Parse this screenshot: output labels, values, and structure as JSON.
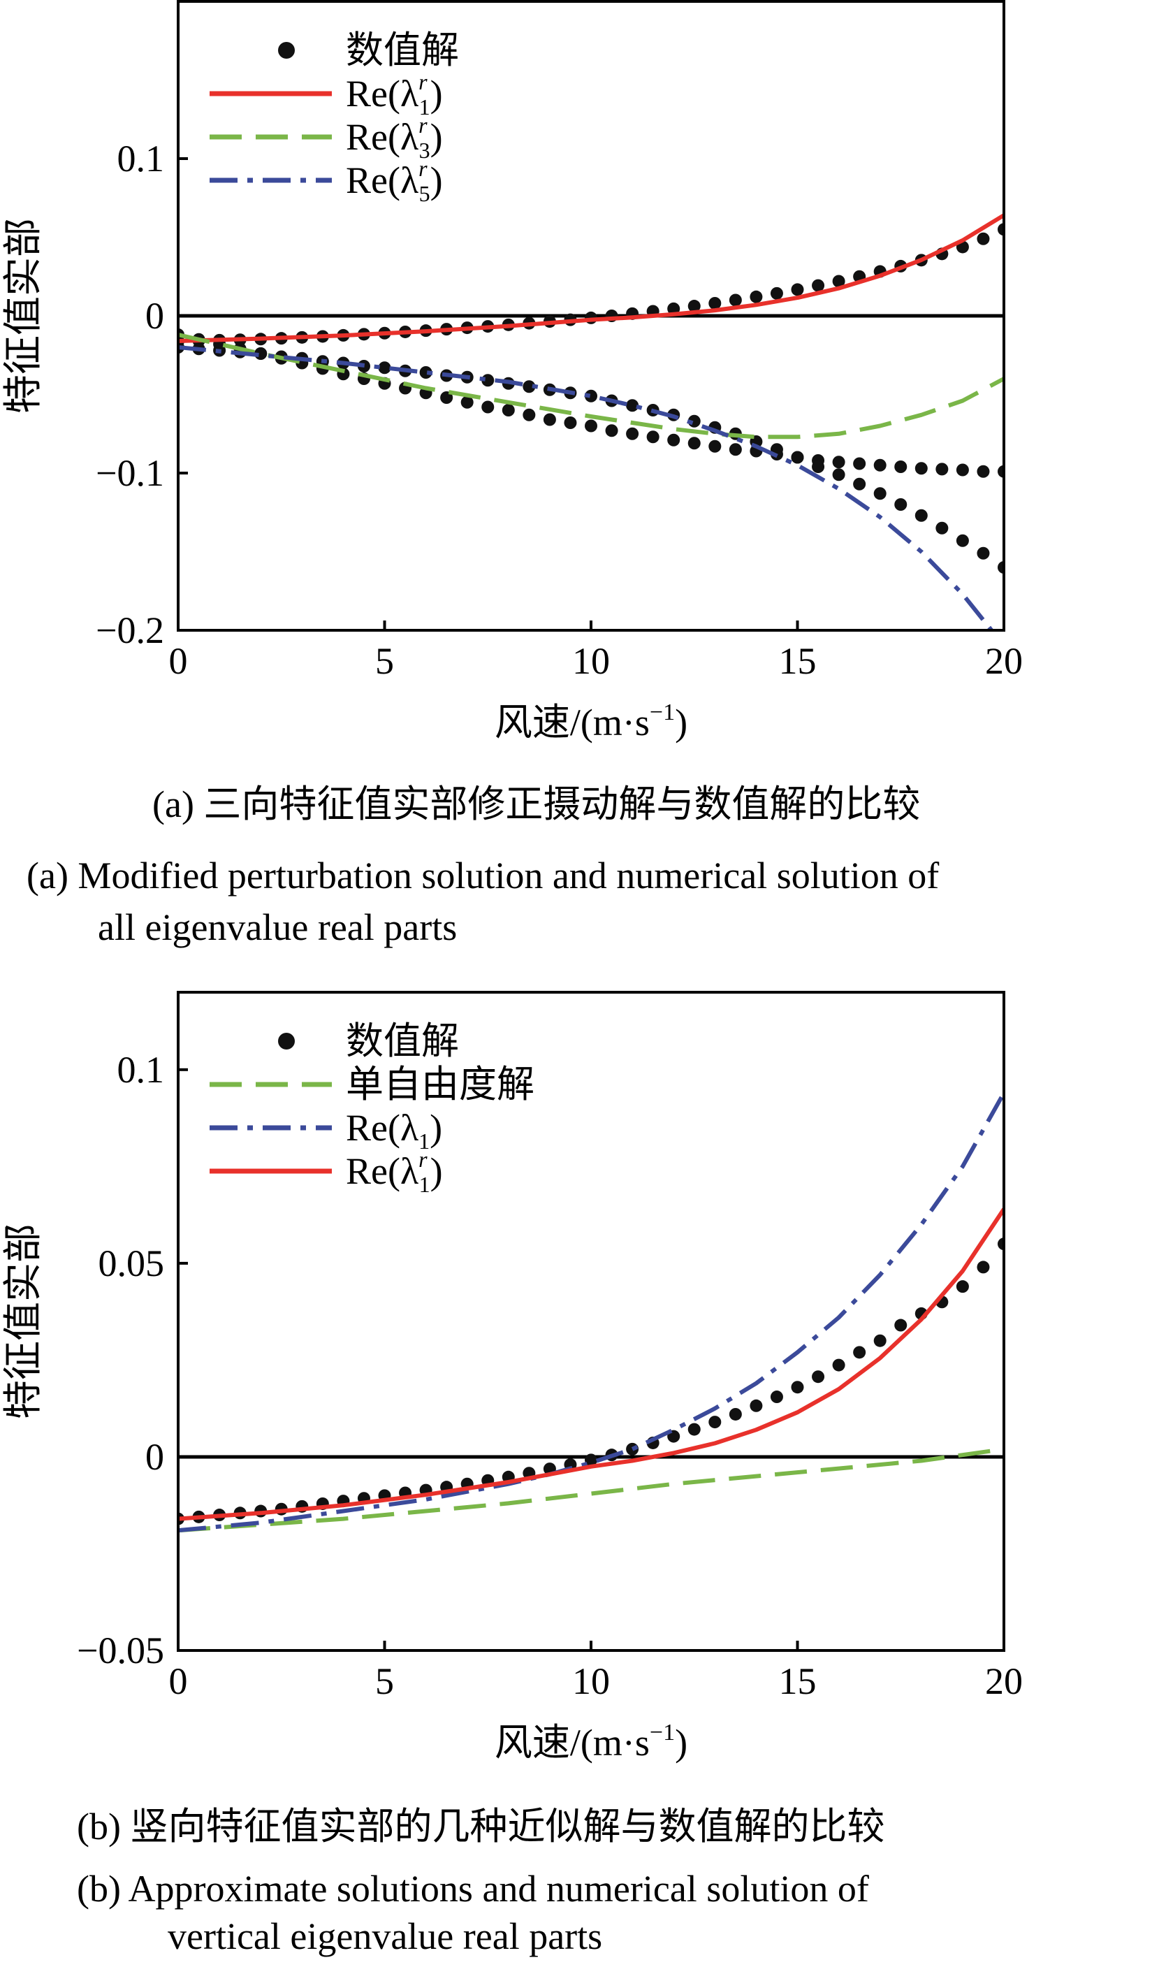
{
  "chart_data": [
    {
      "type": "line",
      "xlabel": "风速/(m·s",
      "xlabel_sup": "−1",
      "xlabel_end": ")",
      "ylabel": "特征值实部",
      "xlim": [
        0,
        20
      ],
      "ylim": [
        -0.2,
        0.2
      ],
      "x_ticks": [
        0,
        5,
        10,
        15,
        20
      ],
      "x_tick_labels": [
        "0",
        "5",
        "10",
        "15",
        "20"
      ],
      "y_ticks": [
        0.1,
        0,
        -0.1,
        -0.2
      ],
      "y_tick_labels": [
        "0.1",
        "0",
        "−0.1",
        "−0.2"
      ],
      "zero_line": true,
      "legend_position": "top-left",
      "legend": [
        {
          "kind": "dots",
          "label": "数值解"
        },
        {
          "kind": "solid",
          "color": "#e8312b",
          "label_pre": "Re(λ",
          "label_sup": "r",
          "label_sub": "1",
          "label_post": ")"
        },
        {
          "kind": "dashed",
          "color": "#7ab648",
          "label_pre": "Re(λ",
          "label_sup": "r",
          "label_sub": "3",
          "label_post": ")"
        },
        {
          "kind": "dashdot",
          "color": "#3b4a9a",
          "label_pre": "Re(λ",
          "label_sup": "r",
          "label_sub": "5",
          "label_post": ")"
        }
      ],
      "series": [
        {
          "kind": "dots",
          "x": [
            0,
            0.5,
            1,
            1.5,
            2,
            2.5,
            3,
            3.5,
            4,
            4.5,
            5,
            5.5,
            6,
            6.5,
            7,
            7.5,
            8,
            8.5,
            9,
            9.5,
            10,
            10.5,
            11,
            11.5,
            12,
            12.5,
            13,
            13.5,
            14,
            14.5,
            15,
            15.5,
            16,
            16.5,
            17,
            17.5,
            18,
            18.5,
            19,
            19.5,
            20
          ],
          "y": [
            -0.016,
            -0.0158,
            -0.0155,
            -0.0152,
            -0.0148,
            -0.0143,
            -0.0137,
            -0.0131,
            -0.0124,
            -0.0117,
            -0.011,
            -0.0102,
            -0.0094,
            -0.0085,
            -0.0076,
            -0.0067,
            -0.0057,
            -0.0047,
            -0.0036,
            -0.0025,
            -0.0013,
            0.0,
            0.0014,
            0.0029,
            0.0045,
            0.0062,
            0.008,
            0.01,
            0.0121,
            0.0143,
            0.0167,
            0.0193,
            0.022,
            0.025,
            0.0282,
            0.0316,
            0.0354,
            0.0394,
            0.0438,
            0.049,
            0.055
          ]
        },
        {
          "kind": "dots",
          "x": [
            0,
            0.5,
            1,
            1.5,
            2,
            2.5,
            3,
            3.5,
            4,
            4.5,
            5,
            5.5,
            6,
            6.5,
            7,
            7.5,
            8,
            8.5,
            9,
            9.5,
            10,
            10.5,
            11,
            11.5,
            12,
            12.5,
            13,
            13.5,
            14,
            14.5,
            15,
            15.5,
            16,
            16.5,
            17,
            17.5,
            18,
            18.5,
            19,
            19.5,
            20
          ],
          "y": [
            -0.012,
            -0.015,
            -0.018,
            -0.021,
            -0.024,
            -0.027,
            -0.03,
            -0.0335,
            -0.037,
            -0.04,
            -0.043,
            -0.046,
            -0.049,
            -0.052,
            -0.055,
            -0.058,
            -0.06,
            -0.063,
            -0.066,
            -0.068,
            -0.07,
            -0.073,
            -0.075,
            -0.077,
            -0.079,
            -0.081,
            -0.083,
            -0.085,
            -0.086,
            -0.088,
            -0.09,
            -0.092,
            -0.093,
            -0.094,
            -0.095,
            -0.096,
            -0.097,
            -0.0975,
            -0.098,
            -0.099,
            -0.099
          ]
        },
        {
          "kind": "dots",
          "x": [
            0,
            0.5,
            1,
            1.5,
            2,
            2.5,
            3,
            3.5,
            4,
            4.5,
            5,
            5.5,
            6,
            6.5,
            7,
            7.5,
            8,
            8.5,
            9,
            9.5,
            10,
            10.5,
            11,
            11.5,
            12,
            12.5,
            13,
            13.5,
            14,
            14.5,
            15,
            15.5,
            16,
            16.5,
            17,
            17.5,
            18,
            18.5,
            19,
            19.5,
            20
          ],
          "y": [
            -0.02,
            -0.021,
            -0.022,
            -0.023,
            -0.024,
            -0.026,
            -0.027,
            -0.029,
            -0.03,
            -0.032,
            -0.033,
            -0.035,
            -0.036,
            -0.038,
            -0.039,
            -0.041,
            -0.043,
            -0.045,
            -0.047,
            -0.049,
            -0.051,
            -0.054,
            -0.057,
            -0.06,
            -0.063,
            -0.067,
            -0.071,
            -0.075,
            -0.08,
            -0.085,
            -0.09,
            -0.096,
            -0.101,
            -0.107,
            -0.113,
            -0.12,
            -0.127,
            -0.135,
            -0.143,
            -0.151,
            -0.16
          ]
        },
        {
          "kind": "solid",
          "color": "#e8312b",
          "name": "Re(λr1)",
          "x": [
            0,
            2,
            4,
            6,
            8,
            9,
            10,
            11,
            12,
            13,
            14,
            15,
            16,
            17,
            18,
            19,
            20
          ],
          "y": [
            -0.016,
            -0.0145,
            -0.0125,
            -0.0098,
            -0.0065,
            -0.0045,
            -0.0025,
            -0.001,
            0.001,
            0.0035,
            0.007,
            0.0115,
            0.0175,
            0.0255,
            0.0355,
            0.048,
            0.064
          ]
        },
        {
          "kind": "dashed",
          "color": "#7ab648",
          "name": "Re(λr3)",
          "x": [
            0,
            2,
            4,
            6,
            8,
            10,
            11,
            12,
            13,
            14,
            15,
            16,
            17,
            18,
            19,
            20
          ],
          "y": [
            -0.012,
            -0.024,
            -0.035,
            -0.046,
            -0.055,
            -0.064,
            -0.068,
            -0.072,
            -0.075,
            -0.077,
            -0.077,
            -0.075,
            -0.07,
            -0.063,
            -0.054,
            -0.04
          ]
        },
        {
          "kind": "dashdot",
          "color": "#3b4a9a",
          "name": "Re(λr5)",
          "x": [
            0,
            2,
            4,
            6,
            8,
            10,
            11,
            12,
            13,
            14,
            15,
            16,
            17,
            18,
            19,
            19.7
          ],
          "y": [
            -0.02,
            -0.025,
            -0.03,
            -0.036,
            -0.042,
            -0.051,
            -0.057,
            -0.064,
            -0.073,
            -0.083,
            -0.095,
            -0.11,
            -0.128,
            -0.15,
            -0.177,
            -0.2
          ]
        }
      ]
    },
    {
      "type": "line",
      "xlabel": "风速/(m·s",
      "xlabel_sup": "−1",
      "xlabel_end": ")",
      "ylabel": "特征值实部",
      "xlim": [
        0,
        20
      ],
      "ylim": [
        -0.05,
        0.12
      ],
      "x_ticks": [
        0,
        5,
        10,
        15,
        20
      ],
      "x_tick_labels": [
        "0",
        "5",
        "10",
        "15",
        "20"
      ],
      "y_ticks": [
        0.1,
        0.05,
        0,
        -0.05
      ],
      "y_tick_labels": [
        "0.1",
        "0.05",
        "0",
        "−0.05"
      ],
      "zero_line": true,
      "legend_position": "top-left",
      "legend": [
        {
          "kind": "dots",
          "label": "数值解"
        },
        {
          "kind": "dashed",
          "color": "#7ab648",
          "label": "单自由度解"
        },
        {
          "kind": "dashdot",
          "color": "#3b4a9a",
          "label_pre": "Re(λ",
          "label_sup": "",
          "label_sub": "1",
          "label_post": ")"
        },
        {
          "kind": "solid",
          "color": "#e8312b",
          "label_pre": "Re(λ",
          "label_sup": "r",
          "label_sub": "1",
          "label_post": ")"
        }
      ],
      "series": [
        {
          "kind": "dots",
          "x": [
            0,
            0.5,
            1,
            1.5,
            2,
            2.5,
            3,
            3.5,
            4,
            4.5,
            5,
            5.5,
            6,
            6.5,
            7,
            7.5,
            8,
            8.5,
            9,
            9.5,
            10,
            10.5,
            11,
            11.5,
            12,
            12.5,
            13,
            13.5,
            14,
            14.5,
            15,
            15.5,
            16,
            16.5,
            17,
            17.5,
            18,
            18.5,
            19,
            19.5,
            20
          ],
          "y": [
            -0.016,
            -0.0155,
            -0.015,
            -0.0145,
            -0.014,
            -0.0135,
            -0.0128,
            -0.0121,
            -0.0114,
            -0.0107,
            -0.01,
            -0.0093,
            -0.0086,
            -0.0078,
            -0.007,
            -0.0061,
            -0.0052,
            -0.0042,
            -0.0031,
            -0.002,
            -0.0008,
            0.0005,
            0.002,
            0.0036,
            0.0053,
            0.0071,
            0.009,
            0.011,
            0.0132,
            0.0155,
            0.018,
            0.0207,
            0.0237,
            0.027,
            0.03,
            0.034,
            0.037,
            0.04,
            0.044,
            0.049,
            0.055
          ]
        },
        {
          "kind": "dashed",
          "color": "#7ab648",
          "name": "单自由度解",
          "x": [
            0,
            2,
            4,
            6,
            8,
            10,
            12,
            14,
            16,
            18,
            20
          ],
          "y": [
            -0.019,
            -0.0175,
            -0.016,
            -0.014,
            -0.012,
            -0.0095,
            -0.007,
            -0.005,
            -0.003,
            -0.001,
            0.002
          ]
        },
        {
          "kind": "dashdot",
          "color": "#3b4a9a",
          "name": "Re(λ1)",
          "x": [
            0,
            2,
            4,
            6,
            8,
            9,
            10,
            11,
            12,
            13,
            14,
            15,
            16,
            17,
            18,
            19,
            20
          ],
          "y": [
            -0.019,
            -0.017,
            -0.014,
            -0.011,
            -0.007,
            -0.0045,
            -0.0015,
            0.002,
            0.007,
            0.0125,
            0.019,
            0.027,
            0.036,
            0.047,
            0.06,
            0.075,
            0.094
          ]
        },
        {
          "kind": "solid",
          "color": "#e8312b",
          "name": "Re(λr1)",
          "x": [
            0,
            2,
            4,
            6,
            8,
            9,
            10,
            11,
            12,
            13,
            14,
            15,
            16,
            17,
            18,
            19,
            20
          ],
          "y": [
            -0.016,
            -0.0145,
            -0.0125,
            -0.0098,
            -0.0065,
            -0.0045,
            -0.0025,
            -0.001,
            0.001,
            0.0035,
            0.007,
            0.0115,
            0.0175,
            0.0255,
            0.0355,
            0.048,
            0.064
          ]
        }
      ]
    }
  ],
  "captions": {
    "a_cn": "(a)  三向特征值实部修正摄动解与数值解的比较",
    "a_en1": "(a)  Modified perturbation solution and numerical solution of",
    "a_en2": "all eigenvalue real parts",
    "b_cn": "(b)  竖向特征值实部的几种近似解与数值解的比较",
    "b_en1": "(b)   Approximate solutions and numerical solution of",
    "b_en2": "vertical eigenvalue real parts"
  }
}
